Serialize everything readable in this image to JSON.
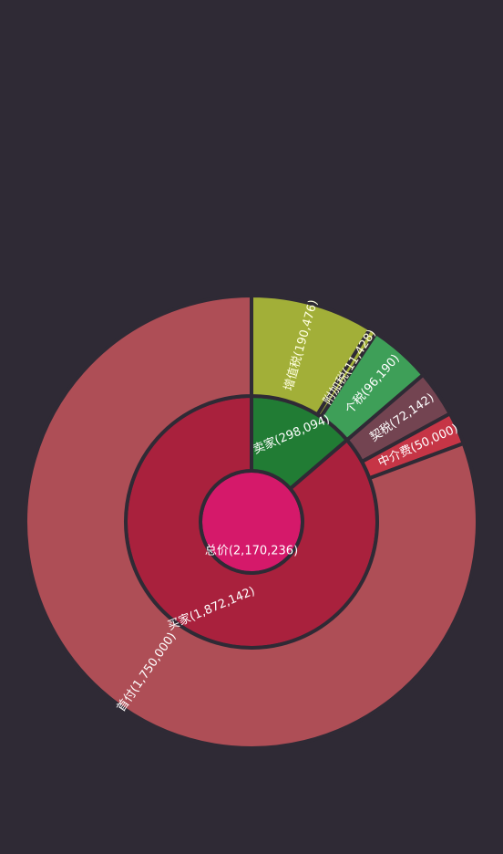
{
  "chart_data": {
    "type": "sunburst",
    "title": "",
    "root": {
      "name": "总价",
      "value": 2170236,
      "color": "#d5196a",
      "children": [
        {
          "name": "卖家",
          "value": 298094,
          "color": "#217c34",
          "children": [
            {
              "name": "增值税",
              "value": 190476,
              "color": "#a2af38"
            },
            {
              "name": "附加税",
              "value": 11428,
              "color": "#a2af38"
            },
            {
              "name": "个税",
              "value": 96190,
              "color": "#3e9f58"
            }
          ]
        },
        {
          "name": "买家",
          "value": 1872142,
          "color": "#a9213d",
          "children": [
            {
              "name": "契税",
              "value": 72142,
              "color": "#734451"
            },
            {
              "name": "中介费",
              "value": 50000,
              "color": "#c63546"
            },
            {
              "name": "首付",
              "value": 1750000,
              "color": "#ae4e56"
            }
          ]
        }
      ]
    }
  }
}
